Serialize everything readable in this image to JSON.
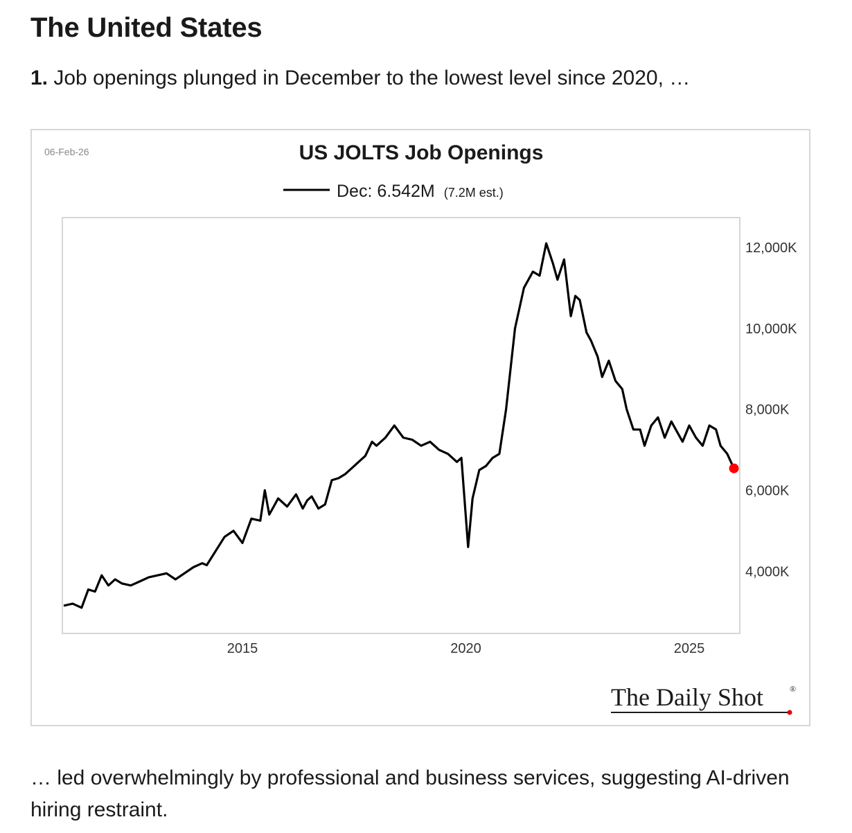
{
  "article": {
    "section_title": "The United States",
    "item_number": "1.",
    "item_text": "Job openings plunged in December to the lowest level since 2020, …",
    "followup_text": "… led overwhelmingly by professional and business services, suggesting AI-driven hiring restraint."
  },
  "chart_data": {
    "type": "line",
    "title": "US JOLTS Job Openings",
    "date_stamp": "06-Feb-26",
    "legend": {
      "label": "Dec: 6.542M",
      "note": "(7.2M est.)",
      "placement": "top-center"
    },
    "x_range": [
      2011.0,
      2026.1
    ],
    "ylim": [
      2500,
      12700
    ],
    "x_ticks": [
      {
        "value": 2015,
        "label": "2015"
      },
      {
        "value": 2020,
        "label": "2020"
      },
      {
        "value": 2025,
        "label": "2025"
      }
    ],
    "y_ticks": [
      {
        "value": 12000,
        "label": "12,000K"
      },
      {
        "value": 10000,
        "label": "10,000K"
      },
      {
        "value": 8000,
        "label": "8,000K"
      },
      {
        "value": 6000,
        "label": "6,000K"
      },
      {
        "value": 4000,
        "label": "4,000K"
      }
    ],
    "y_axis_side": "right",
    "grid": false,
    "series": [
      {
        "name": "Dec: 6.542M",
        "color": "#000000",
        "x": [
          2011.0,
          2011.2,
          2011.4,
          2011.55,
          2011.7,
          2011.85,
          2012.0,
          2012.15,
          2012.3,
          2012.5,
          2012.7,
          2012.9,
          2013.1,
          2013.3,
          2013.5,
          2013.7,
          2013.9,
          2014.1,
          2014.2,
          2014.4,
          2014.6,
          2014.8,
          2015.0,
          2015.2,
          2015.4,
          2015.5,
          2015.6,
          2015.7,
          2015.8,
          2016.0,
          2016.2,
          2016.35,
          2016.45,
          2016.55,
          2016.7,
          2016.85,
          2017.0,
          2017.15,
          2017.3,
          2017.45,
          2017.6,
          2017.75,
          2017.9,
          2018.0,
          2018.2,
          2018.4,
          2018.6,
          2018.8,
          2019.0,
          2019.2,
          2019.4,
          2019.6,
          2019.8,
          2019.9,
          2020.05,
          2020.15,
          2020.3,
          2020.45,
          2020.6,
          2020.75,
          2020.9,
          2021.1,
          2021.3,
          2021.5,
          2021.65,
          2021.8,
          2021.95,
          2022.05,
          2022.2,
          2022.35,
          2022.45,
          2022.55,
          2022.7,
          2022.8,
          2022.95,
          2023.05,
          2023.2,
          2023.35,
          2023.5,
          2023.6,
          2023.75,
          2023.9,
          2024.0,
          2024.15,
          2024.3,
          2024.45,
          2024.6,
          2024.75,
          2024.85,
          2025.0,
          2025.15,
          2025.3,
          2025.45,
          2025.6,
          2025.7,
          2025.85,
          2026.0
        ],
        "y": [
          3150,
          3200,
          3100,
          3550,
          3500,
          3900,
          3650,
          3800,
          3700,
          3650,
          3750,
          3850,
          3900,
          3950,
          3800,
          3950,
          4100,
          4200,
          4150,
          4500,
          4850,
          5000,
          4700,
          5300,
          5250,
          6000,
          5400,
          5600,
          5800,
          5600,
          5900,
          5550,
          5750,
          5850,
          5550,
          5650,
          6250,
          6300,
          6400,
          6550,
          6700,
          6850,
          7200,
          7100,
          7300,
          7600,
          7300,
          7250,
          7100,
          7200,
          7000,
          6900,
          6700,
          6800,
          4600,
          5800,
          6500,
          6600,
          6800,
          6900,
          8000,
          10000,
          11000,
          11400,
          11300,
          12100,
          11600,
          11200,
          11700,
          10300,
          10800,
          10700,
          9900,
          9700,
          9300,
          8800,
          9200,
          8700,
          8500,
          8000,
          7500,
          7500,
          7100,
          7600,
          7800,
          7300,
          7700,
          7400,
          7200,
          7600,
          7300,
          7100,
          7600,
          7500,
          7100,
          6900,
          6542
        ]
      }
    ],
    "last_point_color": "#ff0000",
    "brand": {
      "text": "The Daily Shot",
      "mark": "®"
    }
  }
}
